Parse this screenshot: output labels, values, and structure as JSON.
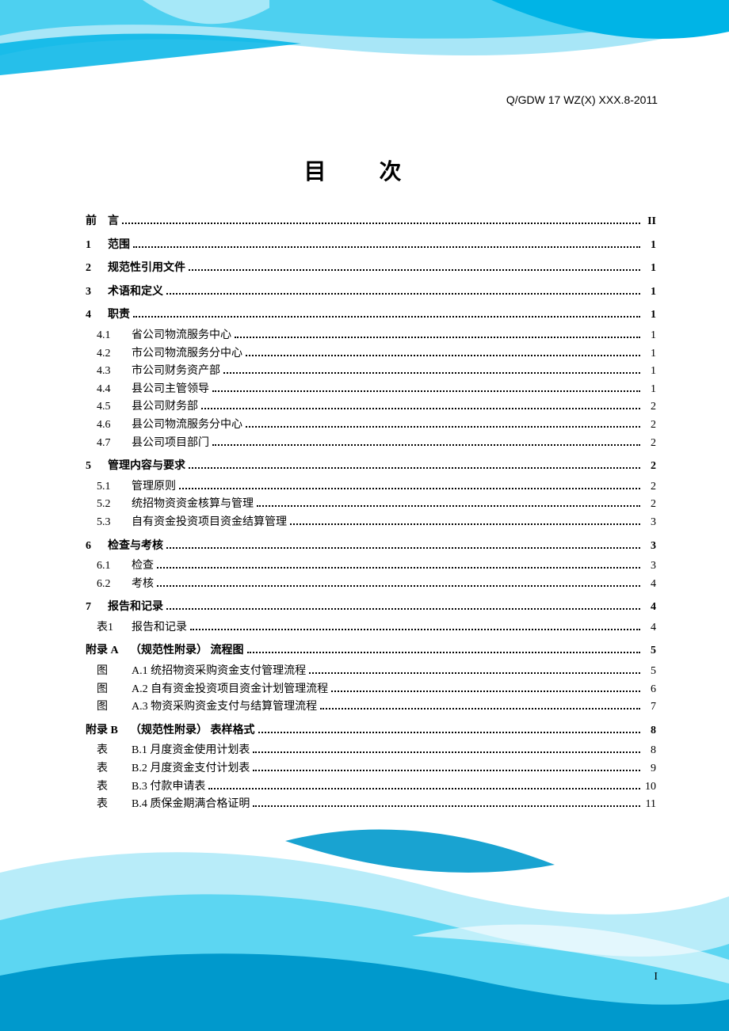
{
  "header_code": "Q/GDW 17 WZ(X) XXX.8-2011",
  "title": "目 次",
  "page_number": "I",
  "colors": {
    "page_bg": "#ffffff",
    "text": "#000000",
    "swoosh_dark_top": "#00b4e6",
    "swoosh_light_top": "#a8e6f7",
    "swoosh_mid_top": "#4dd0f0",
    "swoosh_dark_bottom": "#0099cc",
    "swoosh_light_bottom": "#b8ecf9",
    "swoosh_mid_bottom": "#5cd6f2"
  },
  "toc": [
    {
      "type": "major",
      "num": "前",
      "label": "言",
      "page": "II"
    },
    {
      "type": "major",
      "num": "1",
      "label": "范围",
      "page": "1"
    },
    {
      "type": "major",
      "num": "2",
      "label": "规范性引用文件",
      "page": "1"
    },
    {
      "type": "major",
      "num": "3",
      "label": "术语和定义",
      "page": "1"
    },
    {
      "type": "major",
      "num": "4",
      "label": "职责",
      "page": "1"
    },
    {
      "type": "sub",
      "num": "4.1",
      "label": "省公司物流服务中心",
      "page": "1"
    },
    {
      "type": "sub",
      "num": "4.2",
      "label": "市公司物流服务分中心",
      "page": "1"
    },
    {
      "type": "sub",
      "num": "4.3",
      "label": "市公司财务资产部",
      "page": "1"
    },
    {
      "type": "sub",
      "num": "4.4",
      "label": "县公司主管领导",
      "page": "1"
    },
    {
      "type": "sub",
      "num": "4.5",
      "label": "县公司财务部",
      "page": "2"
    },
    {
      "type": "sub",
      "num": "4.6",
      "label": "县公司物流服务分中心",
      "page": "2"
    },
    {
      "type": "sub",
      "num": "4.7",
      "label": "县公司项目部门",
      "page": "2"
    },
    {
      "type": "major",
      "num": "5",
      "label": "管理内容与要求",
      "page": "2"
    },
    {
      "type": "sub",
      "num": "5.1",
      "label": "管理原则",
      "page": "2"
    },
    {
      "type": "sub",
      "num": "5.2",
      "label": "统招物资资金核算与管理",
      "page": "2"
    },
    {
      "type": "sub",
      "num": "5.3",
      "label": "自有资金投资项目资金结算管理",
      "page": "3"
    },
    {
      "type": "major",
      "num": "6",
      "label": "检查与考核",
      "page": "3"
    },
    {
      "type": "sub",
      "num": "6.1",
      "label": "检查",
      "page": "3"
    },
    {
      "type": "sub",
      "num": "6.2",
      "label": "考核",
      "page": "4"
    },
    {
      "type": "major",
      "num": "7",
      "label": "报告和记录",
      "page": "4"
    },
    {
      "type": "sub",
      "num": "表1",
      "label": "报告和记录",
      "page": "4"
    },
    {
      "type": "major",
      "num": "附录 A",
      "label": "（规范性附录）  流程图",
      "page": "5",
      "wide": true
    },
    {
      "type": "sub",
      "num": "图",
      "label": "A.1 统招物资采购资金支付管理流程",
      "page": "5"
    },
    {
      "type": "sub",
      "num": "图",
      "label": "A.2 自有资金投资项目资金计划管理流程",
      "page": "6"
    },
    {
      "type": "sub",
      "num": "图",
      "label": "A.3 物资采购资金支付与结算管理流程",
      "page": "7"
    },
    {
      "type": "major",
      "num": "附录 B",
      "label": "（规范性附录）  表样格式",
      "page": "8",
      "wide": true
    },
    {
      "type": "sub",
      "num": "表",
      "label": "B.1 月度资金使用计划表",
      "page": "8"
    },
    {
      "type": "sub",
      "num": "表",
      "label": "B.2 月度资金支付计划表",
      "page": "9"
    },
    {
      "type": "sub",
      "num": "表",
      "label": "B.3 付款申请表",
      "page": "10"
    },
    {
      "type": "sub",
      "num": "表",
      "label": "B.4 质保金期满合格证明",
      "page": "11"
    }
  ]
}
